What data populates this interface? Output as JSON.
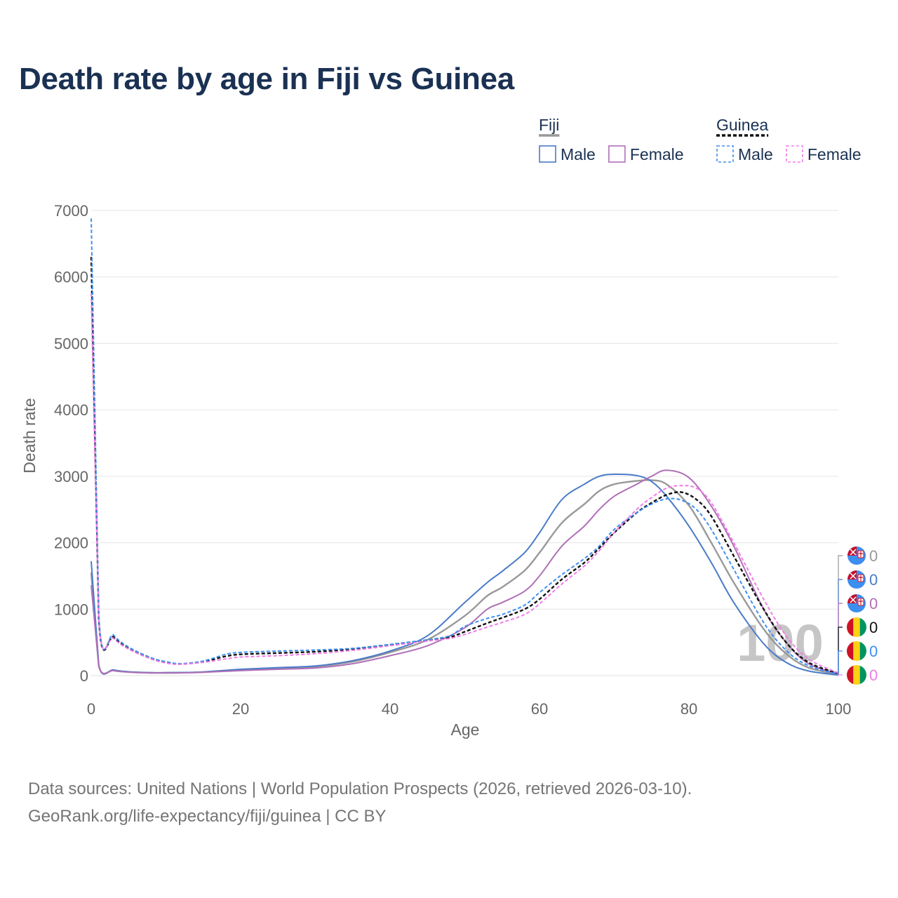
{
  "title": "Death rate by age in Fiji vs Guinea",
  "footer": {
    "line1": "Data sources: United Nations | World Population Prospects (2026, retrieved 2026-03-10).",
    "line2": "GeoRank.org/life-expectancy/fiji/guinea | CC BY"
  },
  "legend": {
    "groups": [
      {
        "name": "Fiji",
        "swatch_color": "#999999",
        "dashed": false,
        "items": [
          {
            "label": "Male",
            "color": "#4a7bc8"
          },
          {
            "label": "Female",
            "color": "#b070b8"
          }
        ]
      },
      {
        "name": "Guinea",
        "swatch_color": "#111111",
        "dashed": true,
        "items": [
          {
            "label": "Male",
            "color": "#3f8ff0"
          },
          {
            "label": "Female",
            "color": "#f07ce8"
          }
        ]
      }
    ]
  },
  "chart_data": {
    "type": "line",
    "title": "Death rate by age in Fiji vs Guinea",
    "xlabel": "Age",
    "ylabel": "Death rate",
    "xlim": [
      0,
      100
    ],
    "ylim": [
      0,
      7000
    ],
    "x_ticks": [
      0,
      20,
      40,
      60,
      80,
      100
    ],
    "y_ticks": [
      0,
      1000,
      2000,
      3000,
      4000,
      5000,
      6000,
      7000
    ],
    "grid": true,
    "watermark": "100",
    "series": [
      {
        "name": "Fiji total",
        "country": "Fiji",
        "sex": "Total",
        "color": "#999999",
        "dashed": false,
        "end_label": "0",
        "points": [
          [
            0,
            1550
          ],
          [
            1,
            155
          ],
          [
            3,
            80
          ],
          [
            5,
            55
          ],
          [
            8,
            42
          ],
          [
            10,
            42
          ],
          [
            13,
            45
          ],
          [
            15,
            52
          ],
          [
            20,
            85
          ],
          [
            25,
            110
          ],
          [
            30,
            135
          ],
          [
            35,
            210
          ],
          [
            40,
            350
          ],
          [
            45,
            540
          ],
          [
            50,
            900
          ],
          [
            53,
            1200
          ],
          [
            55,
            1330
          ],
          [
            58,
            1580
          ],
          [
            60,
            1850
          ],
          [
            63,
            2300
          ],
          [
            66,
            2580
          ],
          [
            68,
            2780
          ],
          [
            70,
            2880
          ],
          [
            73,
            2930
          ],
          [
            75,
            2940
          ],
          [
            77,
            2880
          ],
          [
            80,
            2560
          ],
          [
            83,
            2000
          ],
          [
            86,
            1400
          ],
          [
            90,
            700
          ],
          [
            93,
            330
          ],
          [
            96,
            120
          ],
          [
            100,
            20
          ]
        ]
      },
      {
        "name": "Fiji male",
        "country": "Fiji",
        "sex": "Male",
        "color": "#4a7bc8",
        "dashed": false,
        "end_label": "0",
        "points": [
          [
            0,
            1720
          ],
          [
            1,
            165
          ],
          [
            3,
            85
          ],
          [
            5,
            58
          ],
          [
            8,
            44
          ],
          [
            10,
            44
          ],
          [
            13,
            48
          ],
          [
            15,
            55
          ],
          [
            20,
            95
          ],
          [
            25,
            120
          ],
          [
            30,
            145
          ],
          [
            35,
            225
          ],
          [
            40,
            370
          ],
          [
            45,
            600
          ],
          [
            50,
            1100
          ],
          [
            53,
            1400
          ],
          [
            55,
            1570
          ],
          [
            58,
            1850
          ],
          [
            60,
            2150
          ],
          [
            63,
            2650
          ],
          [
            66,
            2880
          ],
          [
            68,
            3000
          ],
          [
            70,
            3030
          ],
          [
            73,
            3010
          ],
          [
            75,
            2920
          ],
          [
            77,
            2700
          ],
          [
            80,
            2250
          ],
          [
            83,
            1700
          ],
          [
            86,
            1100
          ],
          [
            90,
            480
          ],
          [
            93,
            200
          ],
          [
            96,
            70
          ],
          [
            100,
            10
          ]
        ]
      },
      {
        "name": "Fiji female",
        "country": "Fiji",
        "sex": "Female",
        "color": "#b070b8",
        "dashed": false,
        "end_label": "0",
        "points": [
          [
            0,
            1360
          ],
          [
            1,
            145
          ],
          [
            3,
            75
          ],
          [
            5,
            52
          ],
          [
            8,
            40
          ],
          [
            10,
            40
          ],
          [
            13,
            43
          ],
          [
            15,
            50
          ],
          [
            20,
            75
          ],
          [
            25,
            95
          ],
          [
            30,
            115
          ],
          [
            35,
            180
          ],
          [
            40,
            300
          ],
          [
            45,
            450
          ],
          [
            50,
            720
          ],
          [
            53,
            1000
          ],
          [
            55,
            1100
          ],
          [
            58,
            1270
          ],
          [
            60,
            1500
          ],
          [
            63,
            1950
          ],
          [
            66,
            2250
          ],
          [
            68,
            2500
          ],
          [
            70,
            2700
          ],
          [
            73,
            2880
          ],
          [
            75,
            3000
          ],
          [
            77,
            3090
          ],
          [
            80,
            2980
          ],
          [
            83,
            2550
          ],
          [
            86,
            1950
          ],
          [
            90,
            1000
          ],
          [
            93,
            500
          ],
          [
            96,
            180
          ],
          [
            100,
            25
          ]
        ]
      },
      {
        "name": "Guinea total",
        "country": "Guinea",
        "sex": "Total",
        "color": "#111111",
        "dashed": true,
        "end_label": "0",
        "points": [
          [
            0,
            6300
          ],
          [
            1,
            880
          ],
          [
            3,
            580
          ],
          [
            5,
            410
          ],
          [
            8,
            260
          ],
          [
            10,
            200
          ],
          [
            12,
            175
          ],
          [
            15,
            210
          ],
          [
            18,
            290
          ],
          [
            20,
            320
          ],
          [
            25,
            340
          ],
          [
            30,
            360
          ],
          [
            35,
            400
          ],
          [
            40,
            460
          ],
          [
            45,
            530
          ],
          [
            48,
            580
          ],
          [
            50,
            660
          ],
          [
            53,
            790
          ],
          [
            55,
            870
          ],
          [
            58,
            1000
          ],
          [
            60,
            1150
          ],
          [
            63,
            1450
          ],
          [
            66,
            1700
          ],
          [
            68,
            1920
          ],
          [
            70,
            2150
          ],
          [
            73,
            2450
          ],
          [
            75,
            2600
          ],
          [
            77,
            2720
          ],
          [
            79,
            2760
          ],
          [
            81,
            2650
          ],
          [
            83,
            2400
          ],
          [
            86,
            1800
          ],
          [
            90,
            1000
          ],
          [
            93,
            500
          ],
          [
            96,
            200
          ],
          [
            100,
            30
          ]
        ]
      },
      {
        "name": "Guinea male",
        "country": "Guinea",
        "sex": "Male",
        "color": "#3f8ff0",
        "dashed": true,
        "end_label": "0",
        "points": [
          [
            0,
            6880
          ],
          [
            1,
            940
          ],
          [
            3,
            610
          ],
          [
            5,
            430
          ],
          [
            8,
            270
          ],
          [
            10,
            210
          ],
          [
            12,
            180
          ],
          [
            15,
            220
          ],
          [
            18,
            320
          ],
          [
            20,
            350
          ],
          [
            25,
            370
          ],
          [
            30,
            385
          ],
          [
            35,
            410
          ],
          [
            40,
            470
          ],
          [
            45,
            540
          ],
          [
            48,
            600
          ],
          [
            50,
            740
          ],
          [
            53,
            860
          ],
          [
            55,
            920
          ],
          [
            58,
            1060
          ],
          [
            60,
            1250
          ],
          [
            63,
            1520
          ],
          [
            66,
            1760
          ],
          [
            68,
            1950
          ],
          [
            70,
            2200
          ],
          [
            73,
            2450
          ],
          [
            75,
            2580
          ],
          [
            77,
            2660
          ],
          [
            79,
            2640
          ],
          [
            81,
            2500
          ],
          [
            83,
            2200
          ],
          [
            86,
            1600
          ],
          [
            90,
            800
          ],
          [
            93,
            380
          ],
          [
            96,
            150
          ],
          [
            100,
            20
          ]
        ]
      },
      {
        "name": "Guinea female",
        "country": "Guinea",
        "sex": "Female",
        "color": "#f07ce8",
        "dashed": true,
        "end_label": "0",
        "points": [
          [
            0,
            5750
          ],
          [
            1,
            850
          ],
          [
            3,
            560
          ],
          [
            5,
            400
          ],
          [
            8,
            250
          ],
          [
            10,
            190
          ],
          [
            12,
            170
          ],
          [
            15,
            200
          ],
          [
            18,
            250
          ],
          [
            20,
            280
          ],
          [
            25,
            300
          ],
          [
            30,
            330
          ],
          [
            35,
            380
          ],
          [
            40,
            450
          ],
          [
            45,
            520
          ],
          [
            48,
            560
          ],
          [
            50,
            620
          ],
          [
            53,
            730
          ],
          [
            55,
            800
          ],
          [
            58,
            920
          ],
          [
            60,
            1080
          ],
          [
            63,
            1380
          ],
          [
            66,
            1650
          ],
          [
            68,
            1880
          ],
          [
            70,
            2150
          ],
          [
            73,
            2500
          ],
          [
            75,
            2680
          ],
          [
            77,
            2820
          ],
          [
            79,
            2860
          ],
          [
            81,
            2820
          ],
          [
            83,
            2600
          ],
          [
            86,
            2000
          ],
          [
            90,
            1150
          ],
          [
            93,
            600
          ],
          [
            96,
            250
          ],
          [
            100,
            40
          ]
        ]
      }
    ]
  }
}
